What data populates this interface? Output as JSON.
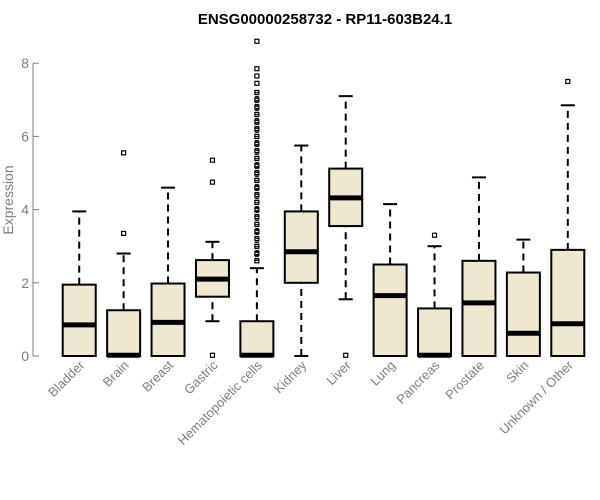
{
  "chart_data": {
    "type": "box",
    "title": "ENSG00000258732 - RP11-603B24.1",
    "ylabel": "Expression",
    "ylim": [
      0,
      8.5
    ],
    "yticks": [
      0,
      2,
      4,
      6,
      8
    ],
    "box_fill": "#efe7cf",
    "categories": [
      "Bladder",
      "Brain",
      "Breast",
      "Gastric",
      "Hematopoietic cells",
      "Kidney",
      "Liver",
      "Lung",
      "Pancreas",
      "Prostate",
      "Skin",
      "Unknown / Other"
    ],
    "boxes": [
      {
        "category": "Bladder",
        "min": 0,
        "q1": 0,
        "median": 0.85,
        "q3": 1.95,
        "max": 3.95,
        "outliers": []
      },
      {
        "category": "Brain",
        "min": 0,
        "q1": 0,
        "median": 0.02,
        "q3": 1.25,
        "max": 2.8,
        "outliers": [
          3.35,
          5.55
        ]
      },
      {
        "category": "Breast",
        "min": 0,
        "q1": 0,
        "median": 0.92,
        "q3": 1.98,
        "max": 4.6,
        "outliers": []
      },
      {
        "category": "Gastric",
        "min": 0.95,
        "q1": 1.62,
        "median": 2.1,
        "q3": 2.62,
        "max": 3.12,
        "outliers": [
          0.02,
          4.75,
          5.35
        ]
      },
      {
        "category": "Hematopoietic cells",
        "min": 0,
        "q1": 0,
        "median": 0.02,
        "q3": 0.95,
        "max": 2.4,
        "outliers": [
          2.6,
          2.8,
          3.0,
          3.2,
          3.4,
          3.6,
          3.8,
          4.0,
          4.2,
          4.4,
          4.6,
          4.8,
          5.0,
          5.2,
          5.4,
          5.6,
          5.8,
          6.0,
          6.2,
          6.4,
          6.6,
          6.8,
          7.0,
          7.2,
          7.45,
          7.65,
          7.85,
          8.6
        ]
      },
      {
        "category": "Kidney",
        "min": 0,
        "q1": 2.0,
        "median": 2.85,
        "q3": 3.95,
        "max": 5.75,
        "outliers": []
      },
      {
        "category": "Liver",
        "min": 1.55,
        "q1": 3.55,
        "median": 4.32,
        "q3": 5.12,
        "max": 7.1,
        "outliers": [
          0.02
        ]
      },
      {
        "category": "Lung",
        "min": 0,
        "q1": 0,
        "median": 1.65,
        "q3": 2.5,
        "max": 4.15,
        "outliers": []
      },
      {
        "category": "Pancreas",
        "min": 0,
        "q1": 0,
        "median": 0.02,
        "q3": 1.3,
        "max": 3.0,
        "outliers": [
          3.3
        ]
      },
      {
        "category": "Prostate",
        "min": 0,
        "q1": 0,
        "median": 1.45,
        "q3": 2.6,
        "max": 4.88,
        "outliers": []
      },
      {
        "category": "Skin",
        "min": 0,
        "q1": 0,
        "median": 0.62,
        "q3": 2.28,
        "max": 3.18,
        "outliers": []
      },
      {
        "category": "Unknown / Other",
        "min": 0,
        "q1": 0,
        "median": 0.88,
        "q3": 2.9,
        "max": 6.85,
        "outliers": [
          7.5
        ]
      }
    ]
  }
}
